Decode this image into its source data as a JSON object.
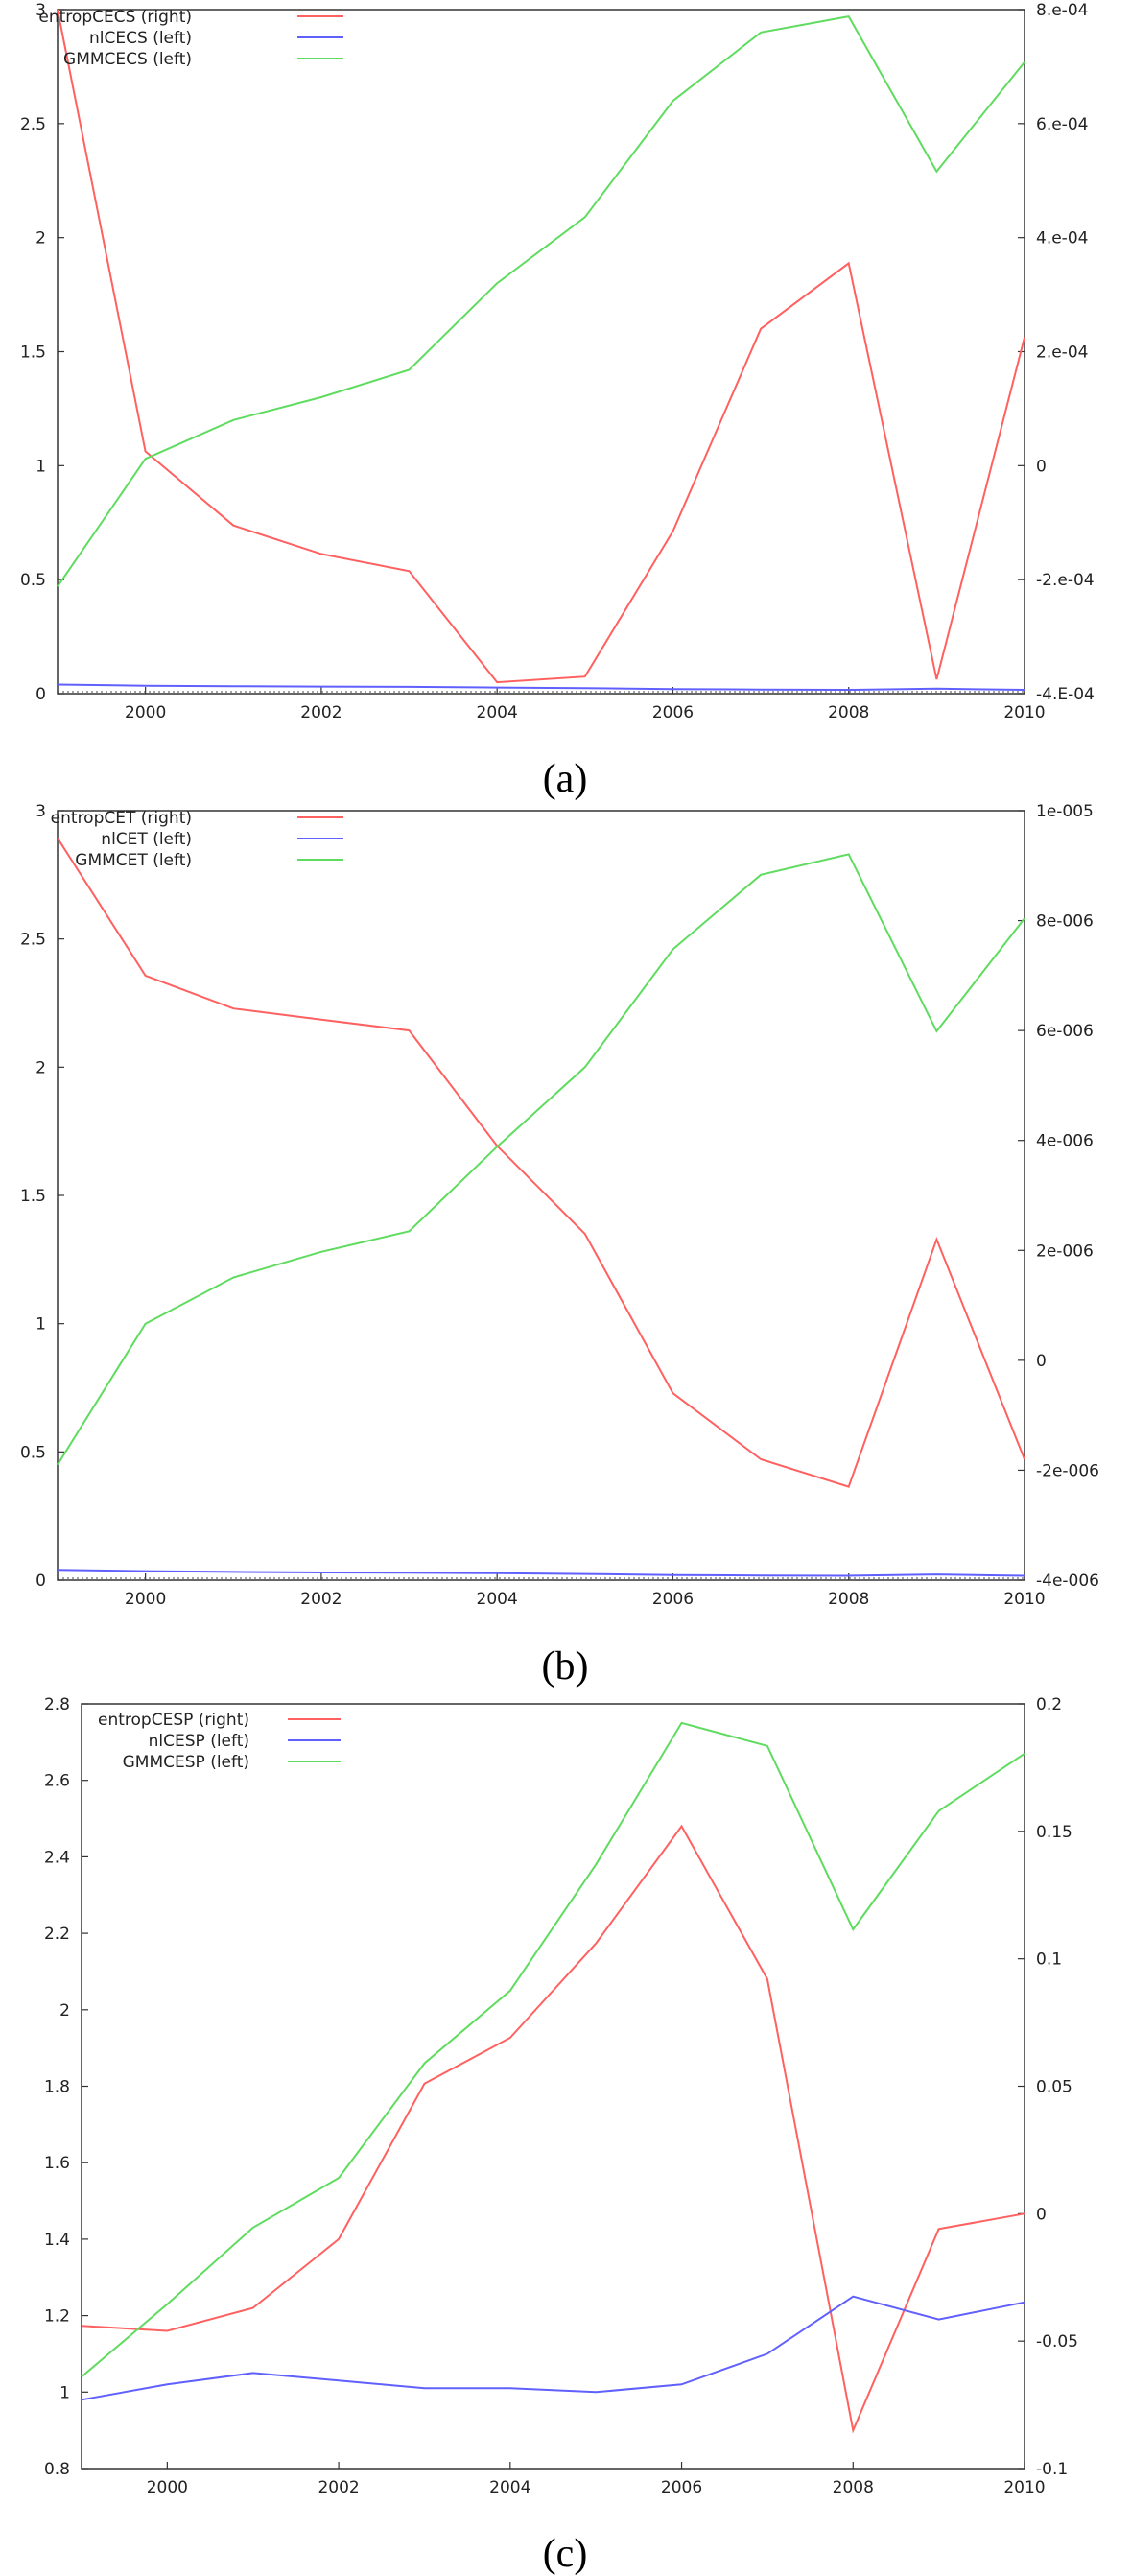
{
  "figure": {
    "captions": [
      "(a)",
      "(b)",
      "(c)"
    ]
  },
  "chart_data": [
    {
      "type": "line",
      "id": "a",
      "caption": "(a)",
      "title": "",
      "xlabel": "",
      "ylabel_left": "",
      "ylabel_right": "",
      "xlim": [
        1999,
        2010
      ],
      "ylim_left": [
        0,
        3
      ],
      "ylim_right": [
        -0.0004,
        0.0008
      ],
      "xticks": [
        "2000",
        "2002",
        "2004",
        "2006",
        "2008",
        "2010"
      ],
      "yticks_left": [
        "0",
        "0.5",
        "1",
        "1.5",
        "2",
        "2.5",
        "3"
      ],
      "yticks_right": [
        "-4.E-04",
        "-2.e-04",
        "0",
        "2.e-04",
        "4.e-04",
        "6.e-04",
        "8.e-04"
      ],
      "legend_position": "top-left",
      "grid": false,
      "series": [
        {
          "name": "entropCECS (right)",
          "axis": "right",
          "color": "#ff6060",
          "x": [
            1999,
            2000,
            2001,
            2002,
            2003,
            2004,
            2005,
            2006,
            2007,
            2008,
            2009,
            2010
          ],
          "values": [
            0.0008,
            2.5e-05,
            -0.000105,
            -0.000155,
            -0.000185,
            -0.00038,
            -0.00037,
            -0.000115,
            0.00024,
            0.000355,
            -0.000375,
            0.000225
          ]
        },
        {
          "name": "nlCECS  (left)",
          "axis": "left",
          "color": "#6060ff",
          "x": [
            1999,
            2000,
            2001,
            2002,
            2003,
            2004,
            2005,
            2006,
            2007,
            2008,
            2009,
            2010
          ],
          "values": [
            0.04,
            0.035,
            0.033,
            0.031,
            0.03,
            0.027,
            0.024,
            0.02,
            0.018,
            0.017,
            0.022,
            0.017
          ]
        },
        {
          "name": "GMMCECS  (left)",
          "axis": "left",
          "color": "#5fdc5f",
          "x": [
            1999,
            2000,
            2001,
            2002,
            2003,
            2004,
            2005,
            2006,
            2007,
            2008,
            2009,
            2010
          ],
          "values": [
            0.47,
            1.03,
            1.2,
            1.3,
            1.42,
            1.8,
            2.09,
            2.6,
            2.9,
            2.97,
            2.29,
            2.77
          ]
        }
      ]
    },
    {
      "type": "line",
      "id": "b",
      "caption": "(b)",
      "title": "",
      "xlabel": "",
      "ylabel_left": "",
      "ylabel_right": "",
      "xlim": [
        1999,
        2010
      ],
      "ylim_left": [
        0,
        3
      ],
      "ylim_right": [
        -4e-06,
        1e-05
      ],
      "xticks": [
        "2000",
        "2002",
        "2004",
        "2006",
        "2008",
        "2010"
      ],
      "yticks_left": [
        "0",
        "0.5",
        "1",
        "1.5",
        "2",
        "2.5",
        "3"
      ],
      "yticks_right": [
        "-4e-006",
        "-2e-006",
        "0",
        "2e-006",
        "4e-006",
        "6e-006",
        "8e-006",
        "1e-005"
      ],
      "legend_position": "top-left",
      "grid": false,
      "series": [
        {
          "name": "entropCET (right)",
          "axis": "right",
          "color": "#ff6060",
          "x": [
            1999,
            2000,
            2001,
            2002,
            2003,
            2004,
            2005,
            2006,
            2007,
            2008,
            2009,
            2010
          ],
          "values": [
            9.5e-06,
            7e-06,
            6.4e-06,
            6.2e-06,
            6e-06,
            3.9e-06,
            2.3e-06,
            -6e-07,
            -1.8e-06,
            -2.3e-06,
            2.2e-06,
            -1.8e-06
          ]
        },
        {
          "name": "nlCET (left)",
          "axis": "left",
          "color": "#6060ff",
          "x": [
            1999,
            2000,
            2001,
            2002,
            2003,
            2004,
            2005,
            2006,
            2007,
            2008,
            2009,
            2010
          ],
          "values": [
            0.04,
            0.035,
            0.032,
            0.03,
            0.029,
            0.027,
            0.024,
            0.02,
            0.018,
            0.017,
            0.022,
            0.017
          ]
        },
        {
          "name": "GMMCET (left)",
          "axis": "left",
          "color": "#5fdc5f",
          "x": [
            1999,
            2000,
            2001,
            2002,
            2003,
            2004,
            2005,
            2006,
            2007,
            2008,
            2009,
            2010
          ],
          "values": [
            0.45,
            1.0,
            1.18,
            1.28,
            1.36,
            1.69,
            2.0,
            2.46,
            2.75,
            2.83,
            2.14,
            2.58
          ]
        }
      ]
    },
    {
      "type": "line",
      "id": "c",
      "caption": "(c)",
      "title": "",
      "xlabel": "",
      "ylabel_left": "",
      "ylabel_right": "",
      "xlim": [
        1999,
        2010
      ],
      "ylim_left": [
        0.8,
        2.8
      ],
      "ylim_right": [
        -0.1,
        0.2
      ],
      "xticks": [
        "2000",
        "2002",
        "2004",
        "2006",
        "2008",
        "2010"
      ],
      "yticks_left": [
        "0.8",
        "1",
        "1.2",
        "1.4",
        "1.6",
        "1.8",
        "2",
        "2.2",
        "2.4",
        "2.6",
        "2.8"
      ],
      "yticks_right": [
        "-0.1",
        "-0.05",
        "0",
        "0.05",
        "0.1",
        "0.15",
        "0.2"
      ],
      "legend_position": "top-left",
      "grid": false,
      "series": [
        {
          "name": "entropCESP (right)",
          "axis": "right",
          "color": "#ff6060",
          "x": [
            1999,
            2000,
            2001,
            2002,
            2003,
            2004,
            2005,
            2006,
            2007,
            2008,
            2009,
            2010
          ],
          "values": [
            -0.044,
            -0.046,
            -0.037,
            -0.01,
            0.051,
            0.069,
            0.106,
            0.152,
            0.092,
            -0.085,
            -0.006,
            0.0
          ]
        },
        {
          "name": "nlCESP (left)",
          "axis": "left",
          "color": "#6060ff",
          "x": [
            1999,
            2000,
            2001,
            2002,
            2003,
            2004,
            2005,
            2006,
            2007,
            2008,
            2009,
            2010
          ],
          "values": [
            0.98,
            1.02,
            1.05,
            1.03,
            1.01,
            1.01,
            1.0,
            1.02,
            1.1,
            1.25,
            1.19,
            1.235
          ]
        },
        {
          "name": "GMMCESP (left)",
          "axis": "left",
          "color": "#5fdc5f",
          "x": [
            1999,
            2000,
            2001,
            2002,
            2003,
            2004,
            2005,
            2006,
            2007,
            2008,
            2009,
            2010
          ],
          "values": [
            1.04,
            1.23,
            1.43,
            1.56,
            1.86,
            2.05,
            2.38,
            2.75,
            2.69,
            2.21,
            2.52,
            2.67
          ]
        }
      ]
    }
  ]
}
